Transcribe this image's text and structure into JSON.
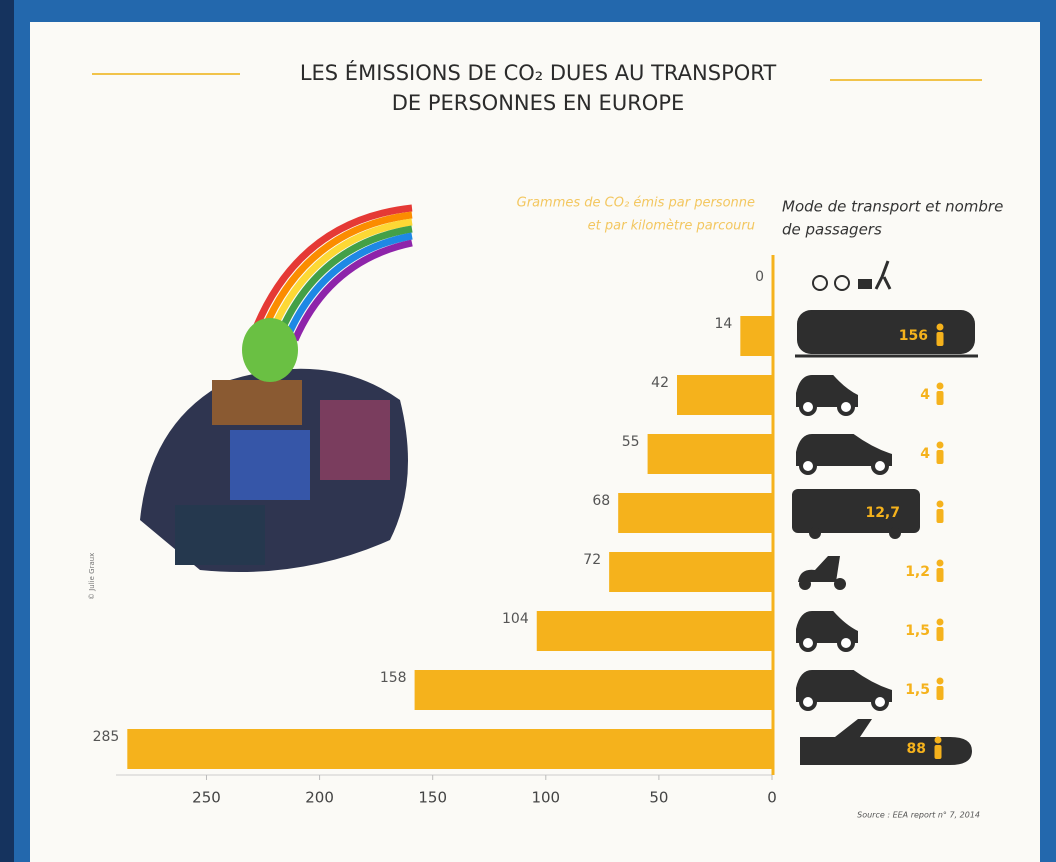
{
  "chart_data": {
    "type": "bar",
    "orientation": "horizontal-left",
    "title": [
      "LES ÉMISSIONS DE CO₂ DUES AU TRANSPORT",
      "DE PERSONNES EN EUROPE"
    ],
    "value_axis_label": [
      "Grammes de CO₂ émis par personne",
      "et par kilomètre parcouru"
    ],
    "category_header": [
      "Mode de transport et nombre",
      "de passagers"
    ],
    "values": [
      0,
      14,
      42,
      55,
      68,
      72,
      104,
      158,
      285
    ],
    "passengers": [
      null,
      "156",
      "4",
      "4",
      "12,7",
      "1,2",
      "1,5",
      "1,5",
      "88"
    ],
    "color": "#f5b21c",
    "xlim": [
      0,
      290
    ],
    "xticks": [
      0,
      50,
      100,
      150,
      200,
      250
    ],
    "source": "Source : EEA report n° 7, 2014",
    "credit": "© Julie Graux"
  }
}
